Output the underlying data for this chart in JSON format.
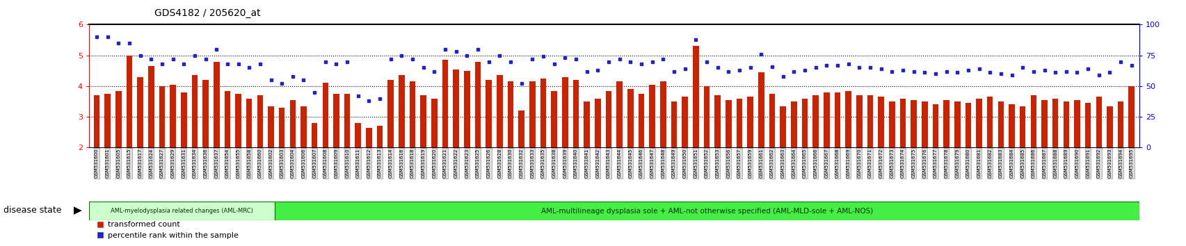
{
  "title": "GDS4182 / 205620_at",
  "ylim_left": [
    2,
    6
  ],
  "ylim_right": [
    0,
    100
  ],
  "yticks_left": [
    2,
    3,
    4,
    5,
    6
  ],
  "yticks_right": [
    0,
    25,
    50,
    75,
    100
  ],
  "bar_color": "#cc2200",
  "marker_color": "#2222cc",
  "background_color": "#ffffff",
  "legend_labels": [
    "transformed count",
    "percentile rank within the sample"
  ],
  "mrc_count": 17,
  "mrc_label": "AML-myelodysplasia related changes (AML-MRC)",
  "mrc_color": "#ccffcc",
  "nos_label": "AML-multilineage dysplasia sole + AML-not otherwise specified (AML-MLD-sole + AML-NOS)",
  "nos_color": "#44ee44",
  "disease_state_label": "disease state",
  "samples": [
    "GSM531600",
    "GSM531601",
    "GSM531605",
    "GSM531615",
    "GSM531617",
    "GSM531624",
    "GSM531627",
    "GSM531629",
    "GSM531631",
    "GSM531634",
    "GSM531636",
    "GSM531637",
    "GSM531654",
    "GSM531655",
    "GSM531658",
    "GSM531660",
    "GSM531602",
    "GSM531603",
    "GSM531604",
    "GSM531606",
    "GSM531607",
    "GSM531608",
    "GSM531609",
    "GSM531610",
    "GSM531611",
    "GSM531612",
    "GSM531613",
    "GSM531614",
    "GSM531616",
    "GSM531618",
    "GSM531619",
    "GSM531620",
    "GSM531621",
    "GSM531622",
    "GSM531623",
    "GSM531625",
    "GSM531626",
    "GSM531628",
    "GSM531630",
    "GSM531632",
    "GSM531633",
    "GSM531635",
    "GSM531638",
    "GSM531639",
    "GSM531640",
    "GSM531641",
    "GSM531642",
    "GSM531643",
    "GSM531644",
    "GSM531645",
    "GSM531646",
    "GSM531647",
    "GSM531648",
    "GSM531649",
    "GSM531650",
    "GSM531651",
    "GSM531652",
    "GSM531653",
    "GSM531656",
    "GSM531657",
    "GSM531659",
    "GSM531661",
    "GSM531662",
    "GSM531663",
    "GSM531664",
    "GSM531665",
    "GSM531666",
    "GSM531667",
    "GSM531668",
    "GSM531669",
    "GSM531670",
    "GSM531671",
    "GSM531672",
    "GSM531673",
    "GSM531674",
    "GSM531675",
    "GSM531676",
    "GSM531677",
    "GSM531678",
    "GSM531679",
    "GSM531680",
    "GSM531681",
    "GSM531682",
    "GSM531683",
    "GSM531684",
    "GSM531685",
    "GSM531686",
    "GSM531687",
    "GSM531688",
    "GSM531689",
    "GSM531690",
    "GSM531691",
    "GSM531692",
    "GSM531693",
    "GSM531694",
    "GSM531695"
  ],
  "transformed_counts": [
    3.7,
    3.75,
    3.85,
    5.0,
    4.3,
    4.65,
    4.0,
    4.05,
    3.8,
    4.35,
    4.2,
    4.8,
    3.85,
    3.75,
    3.6,
    3.7,
    3.35,
    3.3,
    3.55,
    3.35,
    2.8,
    4.1,
    3.75,
    3.75,
    2.8,
    2.65,
    2.7,
    4.2,
    4.35,
    4.15,
    3.7,
    3.6,
    4.85,
    4.55,
    4.5,
    4.8,
    4.2,
    4.35,
    4.15,
    3.2,
    4.15,
    4.25,
    3.85,
    4.3,
    4.2,
    3.5,
    3.6,
    3.85,
    4.15,
    3.9,
    3.75,
    4.05,
    4.15,
    3.5,
    3.65,
    5.3,
    4.0,
    3.7,
    3.55,
    3.6,
    3.65,
    4.45,
    3.75,
    3.35,
    3.5,
    3.6,
    3.7,
    3.8,
    3.8,
    3.85,
    3.7,
    3.7,
    3.65,
    3.5,
    3.6,
    3.55,
    3.5,
    3.4,
    3.55,
    3.5,
    3.45,
    3.6,
    3.65,
    3.5,
    3.4,
    3.35,
    3.7,
    3.55,
    3.6,
    3.5,
    3.55,
    3.45,
    3.65,
    3.35,
    3.5,
    4.0
  ],
  "percentile_ranks": [
    90,
    90,
    85,
    85,
    75,
    72,
    68,
    72,
    68,
    75,
    72,
    80,
    68,
    68,
    65,
    68,
    55,
    52,
    58,
    55,
    45,
    70,
    68,
    70,
    42,
    38,
    40,
    72,
    75,
    72,
    65,
    62,
    80,
    78,
    75,
    80,
    70,
    75,
    70,
    52,
    72,
    74,
    68,
    73,
    72,
    62,
    63,
    70,
    72,
    70,
    68,
    70,
    72,
    62,
    64,
    88,
    70,
    65,
    62,
    63,
    65,
    76,
    66,
    58,
    62,
    63,
    65,
    67,
    67,
    68,
    65,
    65,
    64,
    62,
    63,
    62,
    61,
    60,
    62,
    61,
    63,
    64,
    61,
    60,
    59,
    65,
    62,
    63,
    61,
    62,
    61,
    64,
    59,
    61,
    70,
    67
  ]
}
